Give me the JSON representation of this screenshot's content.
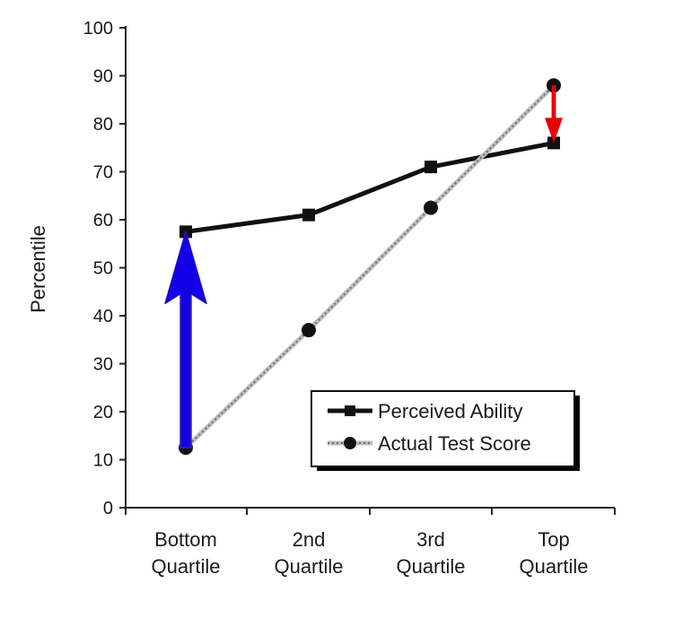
{
  "chart_data": {
    "type": "line",
    "title": "",
    "xlabel": "",
    "ylabel": "Percentile",
    "ylim": [
      0,
      100
    ],
    "yticks": [
      0,
      10,
      20,
      30,
      40,
      50,
      60,
      70,
      80,
      90,
      100
    ],
    "categories": [
      [
        "Bottom",
        "Quartile"
      ],
      [
        "2nd",
        "Quartile"
      ],
      [
        "3rd",
        "Quartile"
      ],
      [
        "Top",
        "Quartile"
      ]
    ],
    "series": [
      {
        "name": "Perceived Ability",
        "values": [
          57.5,
          61,
          71,
          76
        ],
        "marker": "square",
        "style": "solid",
        "color": "#111111"
      },
      {
        "name": "Actual Test Score",
        "values": [
          12.5,
          37,
          62.5,
          88
        ],
        "marker": "circle",
        "style": "dotted",
        "color": "#8a8a8a"
      }
    ],
    "legend": {
      "position": "bottom-right",
      "entries": [
        "Perceived Ability",
        "Actual Test Score"
      ]
    },
    "annotations": [
      {
        "type": "arrow",
        "category_index": 0,
        "from": 12.5,
        "to": 57.5,
        "color": "#1400e6"
      },
      {
        "type": "arrow",
        "category_index": 3,
        "from": 88,
        "to": 76,
        "color": "#e60000"
      }
    ],
    "grid": false
  }
}
